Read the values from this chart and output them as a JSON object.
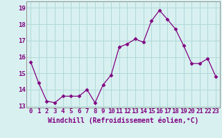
{
  "x": [
    0,
    1,
    2,
    3,
    4,
    5,
    6,
    7,
    8,
    9,
    10,
    11,
    12,
    13,
    14,
    15,
    16,
    17,
    18,
    19,
    20,
    21,
    22,
    23
  ],
  "y": [
    15.7,
    14.4,
    13.3,
    13.2,
    13.6,
    13.6,
    13.6,
    14.0,
    13.2,
    14.3,
    14.9,
    16.6,
    16.8,
    17.1,
    16.9,
    18.2,
    18.85,
    18.3,
    17.7,
    16.7,
    15.6,
    15.6,
    15.9,
    14.8
  ],
  "line_color": "#800080",
  "marker": "D",
  "marker_size": 2.5,
  "bg_color": "#d8f0f0",
  "grid_color": "#b0d8d8",
  "xlabel": "Windchill (Refroidissement éolien,°C)",
  "xlabel_fontsize": 7,
  "tick_fontsize": 6.5,
  "ylim": [
    12.9,
    19.4
  ],
  "yticks": [
    13,
    14,
    15,
    16,
    17,
    18,
    19
  ],
  "xtick_labels": [
    "0",
    "1",
    "2",
    "3",
    "4",
    "5",
    "6",
    "7",
    "8",
    "9",
    "10",
    "11",
    "12",
    "13",
    "14",
    "15",
    "16",
    "17",
    "18",
    "19",
    "20",
    "21",
    "22",
    "23"
  ]
}
